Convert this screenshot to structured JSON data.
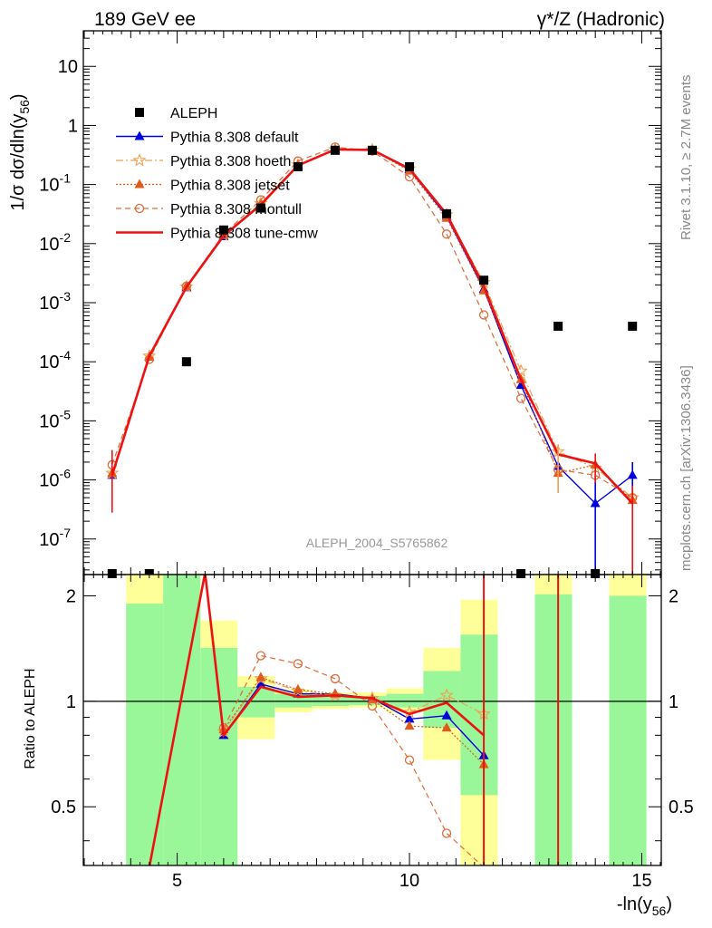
{
  "header": {
    "left": "189 GeV ee",
    "right": "γ*/Z (Hadronic)"
  },
  "side_text": {
    "rivet": "Rivet 3.1.10, ≥ 2.7M events",
    "mcplots": "mcplots.cern.ch [arXiv:1306.3436]"
  },
  "analysis_id": "ALEPH_2004_S5765862",
  "ylabel_top": "1/σ  dσ/dln(y56)",
  "ylabel_bottom": "Ratio to ALEPH",
  "xlabel": "-ln(y56)",
  "colors": {
    "data": "#000000",
    "default": "#0000dd",
    "hoeth": "#f0a050",
    "jetset": "#e05a1a",
    "montull": "#e06a3a",
    "cmw": "#ee1111",
    "band_inner": "#99f799",
    "band_outer": "#ffff99"
  },
  "chart_data": [
    {
      "type": "scatter",
      "panel": "main",
      "x_range": [
        2.98,
        15.42
      ],
      "y_range": [
        2.5e-08,
        40
      ],
      "y_scale": "log",
      "x_ticks": [
        5,
        10,
        15
      ],
      "y_tick_labels": [
        "10^-7",
        "10^-6",
        "10^-5",
        "10^-4",
        "10^-3",
        "10^-2",
        "10^-1",
        "1",
        "10"
      ],
      "legend_position": "top-left",
      "series": [
        {
          "name": "ALEPH",
          "style": "markers",
          "x": [
            3.6,
            4.4,
            5.2,
            6.0,
            6.8,
            7.6,
            8.4,
            9.2,
            10.0,
            10.8,
            11.6,
            12.4,
            13.2,
            14.0,
            14.8
          ],
          "y": [
            2.5e-08,
            2.5e-08,
            0.0001,
            0.017,
            0.04,
            0.2,
            0.38,
            0.38,
            0.2,
            0.032,
            0.0024,
            2.5e-08,
            0.0004,
            2.5e-08,
            0.0004
          ]
        },
        {
          "name": "Pythia 8.308 default",
          "style": "solid-triangle",
          "x": [
            3.6,
            4.4,
            5.2,
            6.0,
            6.8,
            7.6,
            8.4,
            9.2,
            10.0,
            10.8,
            11.6,
            12.4,
            13.2,
            14.0,
            14.8
          ],
          "y": [
            1.2e-06,
            0.00012,
            0.0018,
            0.0132,
            0.045,
            0.21,
            0.395,
            0.385,
            0.18,
            0.029,
            0.0017,
            4e-05,
            1.7e-06,
            4e-07,
            1.2e-06
          ]
        },
        {
          "name": "Pythia 8.308 hoeth",
          "style": "dashdot-star",
          "x": [
            3.6,
            4.4,
            5.2,
            6.0,
            6.8,
            7.6,
            8.4,
            9.2,
            10.0,
            10.8,
            11.6,
            12.4,
            13.2,
            14.0,
            14.8
          ],
          "y": [
            1.3e-06,
            0.000125,
            0.00185,
            0.0138,
            0.048,
            0.215,
            0.39,
            0.385,
            0.185,
            0.031,
            0.0022,
            7e-05,
            3e-06,
            1.6e-06,
            5e-07
          ]
        },
        {
          "name": "Pythia 8.308 jetset",
          "style": "dotted-triangle",
          "x": [
            3.6,
            4.4,
            5.2,
            6.0,
            6.8,
            7.6,
            8.4,
            9.2,
            10.0,
            10.8,
            11.6,
            12.4,
            13.2,
            14.0,
            14.8
          ],
          "y": [
            1.3e-06,
            0.00012,
            0.0019,
            0.014,
            0.047,
            0.214,
            0.392,
            0.385,
            0.17,
            0.027,
            0.0016,
            5e-05,
            1.3e-06,
            1.8e-06,
            4.5e-07
          ]
        },
        {
          "name": "Pythia 8.308 montull",
          "style": "dashed-circle",
          "x": [
            3.6,
            4.4,
            5.2,
            6.0,
            6.8,
            7.6,
            8.4,
            9.2,
            10.0,
            10.8,
            11.6,
            12.4,
            13.2,
            14.0,
            14.8
          ],
          "y": [
            1.8e-06,
            0.00011,
            0.0019,
            0.0145,
            0.055,
            0.25,
            0.43,
            0.37,
            0.135,
            0.0145,
            0.00062,
            2.4e-05,
            1.5e-06,
            1.2e-06,
            5e-07
          ]
        },
        {
          "name": "Pythia 8.308 tune-cmw",
          "style": "solid-line",
          "x": [
            3.6,
            4.4,
            5.2,
            6.0,
            6.8,
            7.6,
            8.4,
            9.2,
            10.0,
            10.8,
            11.6,
            12.4,
            13.2,
            14.0,
            14.8
          ],
          "y": [
            1.2e-06,
            0.000125,
            0.00185,
            0.0136,
            0.0455,
            0.21,
            0.392,
            0.386,
            0.185,
            0.0315,
            0.0019,
            5e-05,
            2.7e-06,
            1.9e-06,
            4e-07
          ]
        }
      ]
    },
    {
      "type": "line",
      "panel": "ratio",
      "y_range": [
        0.34,
        2.3
      ],
      "y_scale": "log",
      "y_ticks": [
        0.5,
        1,
        2
      ],
      "reference_line": 1,
      "bands": [
        {
          "x0": 3.9,
          "x1": 4.7,
          "inner": [
            0.3,
            1.9
          ],
          "outer": [
            0.3,
            2.3
          ]
        },
        {
          "x0": 4.7,
          "x1": 5.5,
          "inner": [
            0.3,
            2.3
          ],
          "outer": [
            0.3,
            2.3
          ]
        },
        {
          "x0": 5.5,
          "x1": 6.3,
          "inner": [
            0.3,
            1.42
          ],
          "outer": [
            0.3,
            1.7
          ]
        },
        {
          "x0": 6.3,
          "x1": 7.1,
          "inner": [
            0.9,
            1.1
          ],
          "outer": [
            0.78,
            1.18
          ]
        },
        {
          "x0": 7.1,
          "x1": 7.9,
          "inner": [
            0.96,
            1.05
          ],
          "outer": [
            0.93,
            1.08
          ]
        },
        {
          "x0": 7.9,
          "x1": 8.7,
          "inner": [
            0.97,
            1.03
          ],
          "outer": [
            0.95,
            1.06
          ]
        },
        {
          "x0": 8.7,
          "x1": 9.5,
          "inner": [
            0.975,
            1.035
          ],
          "outer": [
            0.96,
            1.06
          ]
        },
        {
          "x0": 9.5,
          "x1": 10.3,
          "inner": [
            0.96,
            1.05
          ],
          "outer": [
            0.93,
            1.09
          ]
        },
        {
          "x0": 10.3,
          "x1": 11.1,
          "inner": [
            0.84,
            1.22
          ],
          "outer": [
            0.68,
            1.42
          ]
        },
        {
          "x0": 11.1,
          "x1": 11.9,
          "inner": [
            0.54,
            1.55
          ],
          "outer": [
            0.3,
            1.95
          ]
        },
        {
          "x0": 12.7,
          "x1": 13.5,
          "inner": [
            0.3,
            2.02
          ],
          "outer": [
            0.3,
            2.3
          ]
        },
        {
          "x0": 14.3,
          "x1": 15.1,
          "inner": [
            0.3,
            2.0
          ],
          "outer": [
            0.3,
            2.3
          ]
        }
      ],
      "series": [
        {
          "name": "Pythia 8.308 default",
          "x": [
            6.0,
            6.8,
            7.6,
            8.4,
            9.2,
            10.0,
            10.8,
            11.6
          ],
          "y": [
            0.8,
            1.12,
            1.05,
            1.05,
            1.02,
            0.89,
            0.91,
            0.7
          ]
        },
        {
          "name": "Pythia 8.308 hoeth",
          "x": [
            6.0,
            6.8,
            7.6,
            8.4,
            9.2,
            10.0,
            10.8,
            11.6
          ],
          "y": [
            0.82,
            1.16,
            1.07,
            1.04,
            1.02,
            0.93,
            1.04,
            0.92
          ]
        },
        {
          "name": "Pythia 8.308 jetset",
          "x": [
            6.0,
            6.8,
            7.6,
            8.4,
            9.2,
            10.0,
            10.8,
            11.6
          ],
          "y": [
            0.83,
            1.17,
            1.08,
            1.05,
            1.01,
            0.85,
            0.84,
            0.66
          ]
        },
        {
          "name": "Pythia 8.308 montull",
          "x": [
            6.0,
            6.8,
            7.6,
            8.4,
            9.2,
            10.0,
            10.8,
            11.6
          ],
          "y": [
            0.84,
            1.35,
            1.28,
            1.16,
            0.97,
            0.68,
            0.42,
            0.3
          ]
        },
        {
          "name": "Pythia 8.308 tune-cmw",
          "x": [
            4.4,
            5.6,
            6.0,
            6.8,
            7.6,
            8.4,
            9.2,
            10.0,
            10.8,
            11.6
          ],
          "y": [
            0.3,
            3.0,
            0.8,
            1.1,
            1.03,
            1.04,
            1.02,
            0.92,
            0.99,
            0.8
          ]
        }
      ]
    }
  ]
}
